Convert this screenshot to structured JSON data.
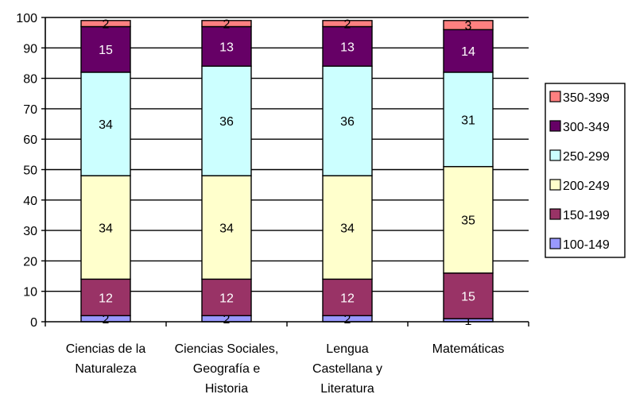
{
  "chart_data": {
    "type": "bar",
    "stacked": true,
    "categories": [
      [
        "Ciencias de la",
        "Naturaleza"
      ],
      [
        "Ciencias Sociales,",
        "Geografía e",
        "Historia"
      ],
      [
        "Lengua",
        "Castellana y",
        "Literatura"
      ],
      [
        "Matemáticas"
      ]
    ],
    "series": [
      {
        "name": "100-149",
        "color": "#9999ff",
        "values": [
          2,
          2,
          2,
          1
        ]
      },
      {
        "name": "150-199",
        "color": "#993366",
        "values": [
          12,
          12,
          12,
          15
        ]
      },
      {
        "name": "200-249",
        "color": "#ffffcc",
        "values": [
          34,
          34,
          34,
          35
        ]
      },
      {
        "name": "250-299",
        "color": "#ccffff",
        "values": [
          34,
          36,
          36,
          31
        ]
      },
      {
        "name": "300-349",
        "color": "#660066",
        "values": [
          15,
          13,
          13,
          14
        ]
      },
      {
        "name": "350-399",
        "color": "#ff8080",
        "values": [
          2,
          2,
          2,
          3
        ]
      }
    ],
    "ylim": [
      0,
      100
    ],
    "yticks": [
      0,
      10,
      20,
      30,
      40,
      50,
      60,
      70,
      80,
      90,
      100
    ],
    "grid": true,
    "legend_position": "right",
    "legend_order": [
      "350-399",
      "300-349",
      "250-299",
      "200-249",
      "150-199",
      "100-149"
    ],
    "title": "",
    "xlabel": "",
    "ylabel": ""
  }
}
